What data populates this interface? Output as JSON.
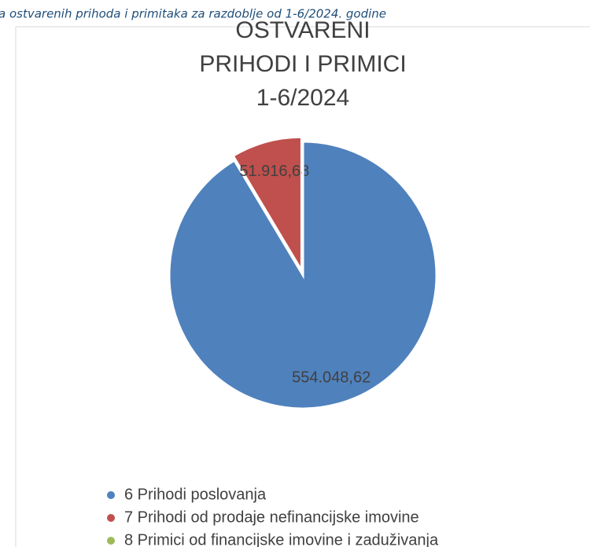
{
  "header": "a ostvarenih prihoda i primitaka za razdoblje od 1-6/2024. godine",
  "chart_data": {
    "type": "pie",
    "title": [
      "OSTVARENI",
      "PRIHODI I PRIMICI",
      "1-6/2024"
    ],
    "categories": [
      "6 Prihodi poslovanja",
      "7 Prihodi od prodaje nefinancijske imovine",
      "8 Primici od financijske imovine i zaduživanja"
    ],
    "values": [
      554048.62,
      51916.68,
      0
    ],
    "value_labels": [
      "554.048,62",
      "51.916,68",
      null
    ],
    "colors": [
      "#4f81bd",
      "#c0504d",
      "#9bbb59"
    ],
    "legend": "bottom"
  }
}
